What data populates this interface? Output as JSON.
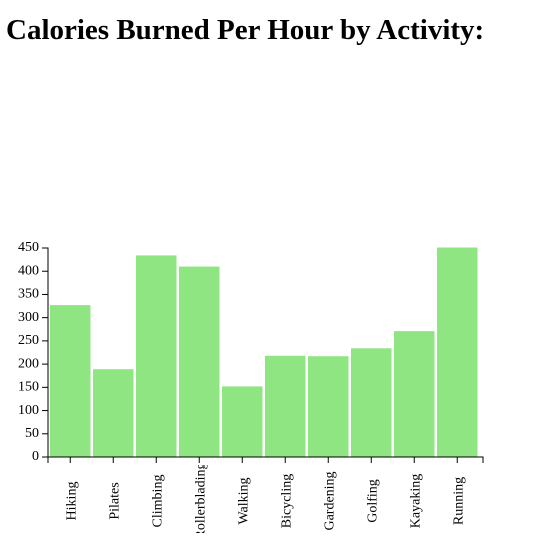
{
  "page": {
    "title": "Calories Burned Per Hour by Activity:"
  },
  "chart_data": {
    "type": "bar",
    "title": "Calories Burned Per Hour by Activity:",
    "xlabel": "",
    "ylabel": "",
    "categories": [
      "Hiking",
      "Pilates",
      "Climbing",
      "Rollerblading",
      "Walking",
      "Bicycling",
      "Gardening",
      "Golfing",
      "Kayaking",
      "Running"
    ],
    "values": [
      327,
      189,
      434,
      410,
      152,
      218,
      217,
      234,
      271,
      451
    ],
    "ylim": [
      0,
      450
    ],
    "yticks": [
      0,
      50,
      100,
      150,
      200,
      250,
      300,
      350,
      400,
      450
    ],
    "bar_color": "#8ee581",
    "grid": false,
    "legend": "none"
  }
}
